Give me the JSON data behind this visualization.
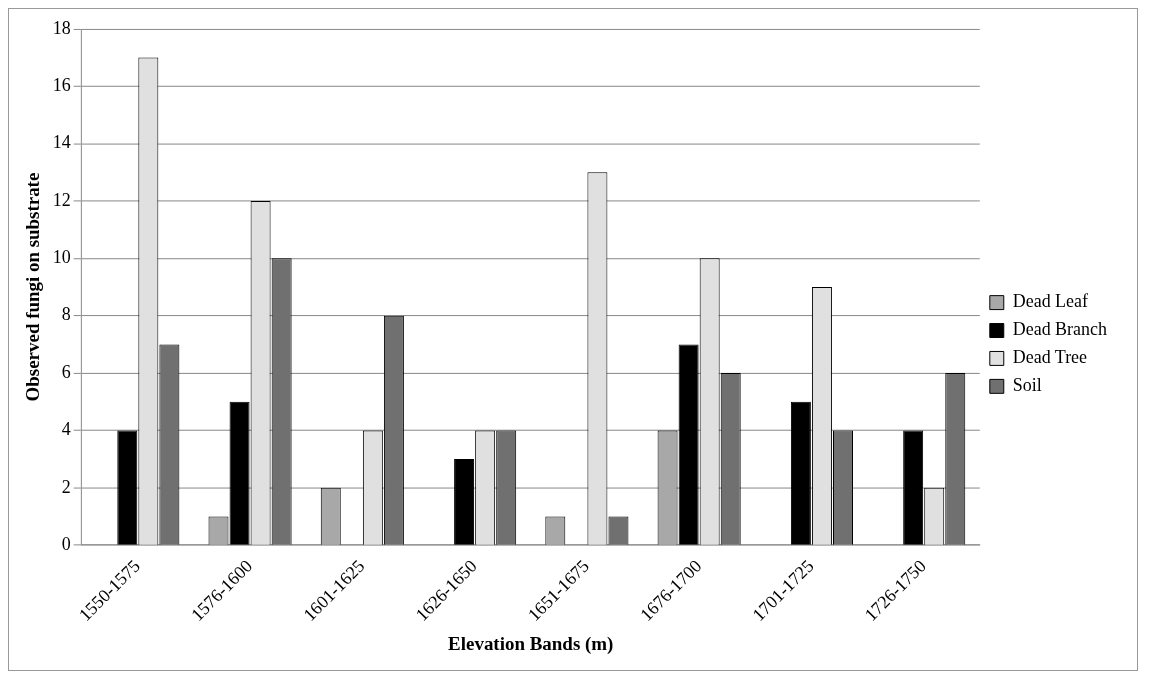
{
  "chart_data": {
    "type": "bar",
    "xlabel": "Elevation Bands (m)",
    "ylabel": "Observed fungi on substrate",
    "categories": [
      "1550-1575",
      "1576-1600",
      "1601-1625",
      "1626-1650",
      "1651-1675",
      "1676-1700",
      "1701-1725",
      "1726-1750"
    ],
    "series": [
      {
        "name": "Dead Leaf",
        "color": "#a8a8a8",
        "values": [
          0,
          1,
          2,
          0,
          1,
          4,
          0,
          0
        ]
      },
      {
        "name": "Dead Branch",
        "color": "#000000",
        "values": [
          4,
          5,
          0,
          3,
          0,
          7,
          5,
          4
        ]
      },
      {
        "name": "Dead Tree",
        "color": "#e0e0e0",
        "values": [
          17,
          12,
          4,
          4,
          13,
          10,
          9,
          2
        ]
      },
      {
        "name": "Soil",
        "color": "#707070",
        "values": [
          7,
          10,
          8,
          4,
          1,
          6,
          4,
          6
        ]
      }
    ],
    "ylim": [
      0,
      18
    ],
    "yticks": [
      0,
      2,
      4,
      6,
      8,
      10,
      12,
      14,
      16,
      18
    ],
    "grid": "y",
    "legend": "right"
  }
}
